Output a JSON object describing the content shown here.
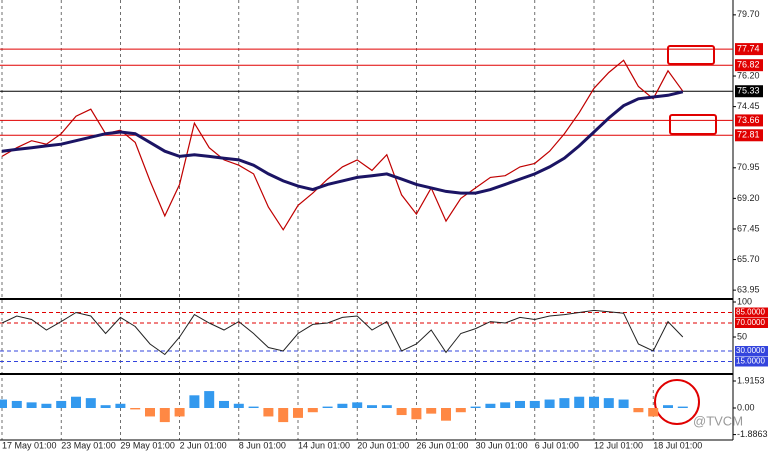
{
  "chart_data": [
    {
      "type": "line",
      "categories": [
        "17 May 01:00",
        null,
        null,
        null,
        "23 May 01:00",
        null,
        null,
        null,
        "29 May 01:00",
        null,
        null,
        null,
        "2 Jun 01:00",
        null,
        null,
        null,
        "8 Jun 01:00",
        null,
        null,
        null,
        "14 Jun 01:00",
        null,
        null,
        null,
        "20 Jun 01:00",
        null,
        null,
        null,
        "26 Jun 01:00",
        null,
        null,
        null,
        "30 Jun 01:00",
        null,
        null,
        null,
        "6 Jul 01:00",
        null,
        null,
        null,
        "12 Jul 01:00",
        null,
        null,
        null,
        "18 Jul 01:00",
        null,
        null
      ],
      "series": [
        {
          "color": "#c00000",
          "values": [
            71.6,
            72.1,
            72.5,
            72.3,
            72.9,
            73.9,
            74.3,
            72.9,
            73.1,
            72.4,
            70.2,
            68.2,
            70.0,
            73.5,
            72.1,
            71.4,
            71.1,
            70.6,
            68.7,
            67.4,
            68.8,
            69.5,
            70.3,
            71.0,
            71.4,
            70.8,
            71.7,
            69.4,
            68.3,
            69.8,
            67.9,
            69.2,
            69.8,
            70.4,
            70.5,
            71.0,
            71.2,
            71.9,
            72.9,
            74.1,
            75.5,
            76.4,
            77.1,
            75.6,
            74.9,
            76.5,
            75.33
          ]
        },
        {
          "color": "#1b1464",
          "values": [
            71.9,
            72.0,
            72.1,
            72.2,
            72.3,
            72.5,
            72.7,
            72.9,
            73.0,
            72.9,
            72.4,
            71.9,
            71.6,
            71.7,
            71.6,
            71.5,
            71.4,
            71.1,
            70.6,
            70.2,
            69.9,
            69.7,
            70.0,
            70.2,
            70.4,
            70.5,
            70.6,
            70.3,
            70.0,
            69.8,
            69.6,
            69.5,
            69.5,
            69.7,
            70.0,
            70.3,
            70.6,
            71.0,
            71.5,
            72.2,
            73.0,
            73.8,
            74.5,
            74.9,
            75.0,
            75.1,
            75.3
          ]
        }
      ],
      "ylim": [
        63.5,
        80.55
      ],
      "yticks": [
        {
          "value": 79.7,
          "label": "79.70"
        },
        {
          "value": 76.2,
          "label": "76.20"
        },
        74.45,
        70.95,
        {
          "value": 69.2,
          "label": "69.20"
        },
        67.45,
        {
          "value": 65.7,
          "label": "65.70"
        },
        63.95
      ],
      "hlines": [
        {
          "value": 77.74,
          "color": "#e00000"
        },
        {
          "value": 76.82,
          "color": "#e00000"
        },
        {
          "value": 75.33,
          "color": "#000000"
        },
        {
          "value": 73.66,
          "color": "#e00000"
        },
        {
          "value": 72.81,
          "color": "#e00000"
        }
      ]
    },
    {
      "type": "line",
      "color": "#222222",
      "values": [
        70,
        80,
        75,
        60,
        72,
        85,
        80,
        55,
        78,
        65,
        40,
        25,
        50,
        82,
        70,
        60,
        72,
        55,
        35,
        30,
        55,
        68,
        70,
        78,
        80,
        60,
        72,
        30,
        40,
        60,
        28,
        55,
        62,
        72,
        70,
        78,
        75,
        80,
        82,
        85,
        88,
        86,
        84,
        40,
        30,
        72,
        50
      ],
      "ylim": [
        0,
        100
      ],
      "yticks": [
        100,
        50
      ],
      "levels": [
        {
          "value": 85,
          "label": "85.0000",
          "color": "#e00000"
        },
        {
          "value": 70,
          "label": "70.0000",
          "color": "#e00000"
        },
        {
          "value": 30,
          "label": "30.0000",
          "color": "#3344dd"
        },
        {
          "value": 15,
          "label": "15.0000",
          "color": "#3344dd"
        }
      ]
    },
    {
      "type": "bar",
      "pos_color": "#3399ee",
      "neg_color": "#ff8844",
      "values": [
        0.6,
        0.5,
        0.4,
        0.3,
        0.5,
        0.8,
        0.7,
        0.2,
        0.3,
        -0.1,
        -0.6,
        -1.0,
        -0.6,
        0.9,
        1.2,
        0.5,
        0.3,
        0.1,
        -0.6,
        -1.0,
        -0.7,
        -0.3,
        0.1,
        0.3,
        0.4,
        0.2,
        0.2,
        -0.5,
        -0.8,
        -0.4,
        -0.9,
        -0.3,
        0.1,
        0.3,
        0.4,
        0.5,
        0.5,
        0.6,
        0.7,
        0.8,
        0.8,
        0.7,
        0.6,
        -0.3,
        -0.6,
        0.2,
        0.1
      ],
      "ylim": [
        -2.27,
        2.27
      ],
      "yticks": [
        1.9153,
        {
          "value": 0,
          "label": "0.00"
        },
        -1.8863
      ]
    }
  ],
  "watermark": "@TVCM"
}
